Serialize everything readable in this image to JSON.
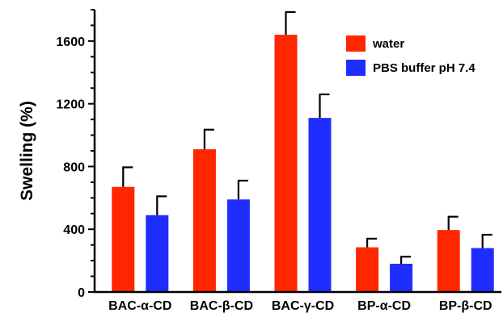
{
  "chart_data": {
    "type": "bar",
    "title": "",
    "xlabel": "",
    "ylabel": "Swelling (%)",
    "ylim": [
      0,
      1800
    ],
    "yticks": [
      0,
      400,
      800,
      1200,
      1600
    ],
    "grid": false,
    "legend_position": "top-right",
    "categories": [
      "BAC-α-CD",
      "BAC-β-CD",
      "BAC-γ-CD",
      "BP-α-CD",
      "BP-β-CD"
    ],
    "series": [
      {
        "name": "water",
        "color": "#ff2600",
        "values": [
          670,
          910,
          1640,
          285,
          395
        ],
        "error": [
          125,
          125,
          145,
          55,
          85
        ]
      },
      {
        "name": "PBS buffer pH 7.4",
        "color": "#1f2dff",
        "values": [
          490,
          590,
          1110,
          180,
          280
        ],
        "error": [
          120,
          120,
          150,
          45,
          85
        ]
      }
    ]
  }
}
